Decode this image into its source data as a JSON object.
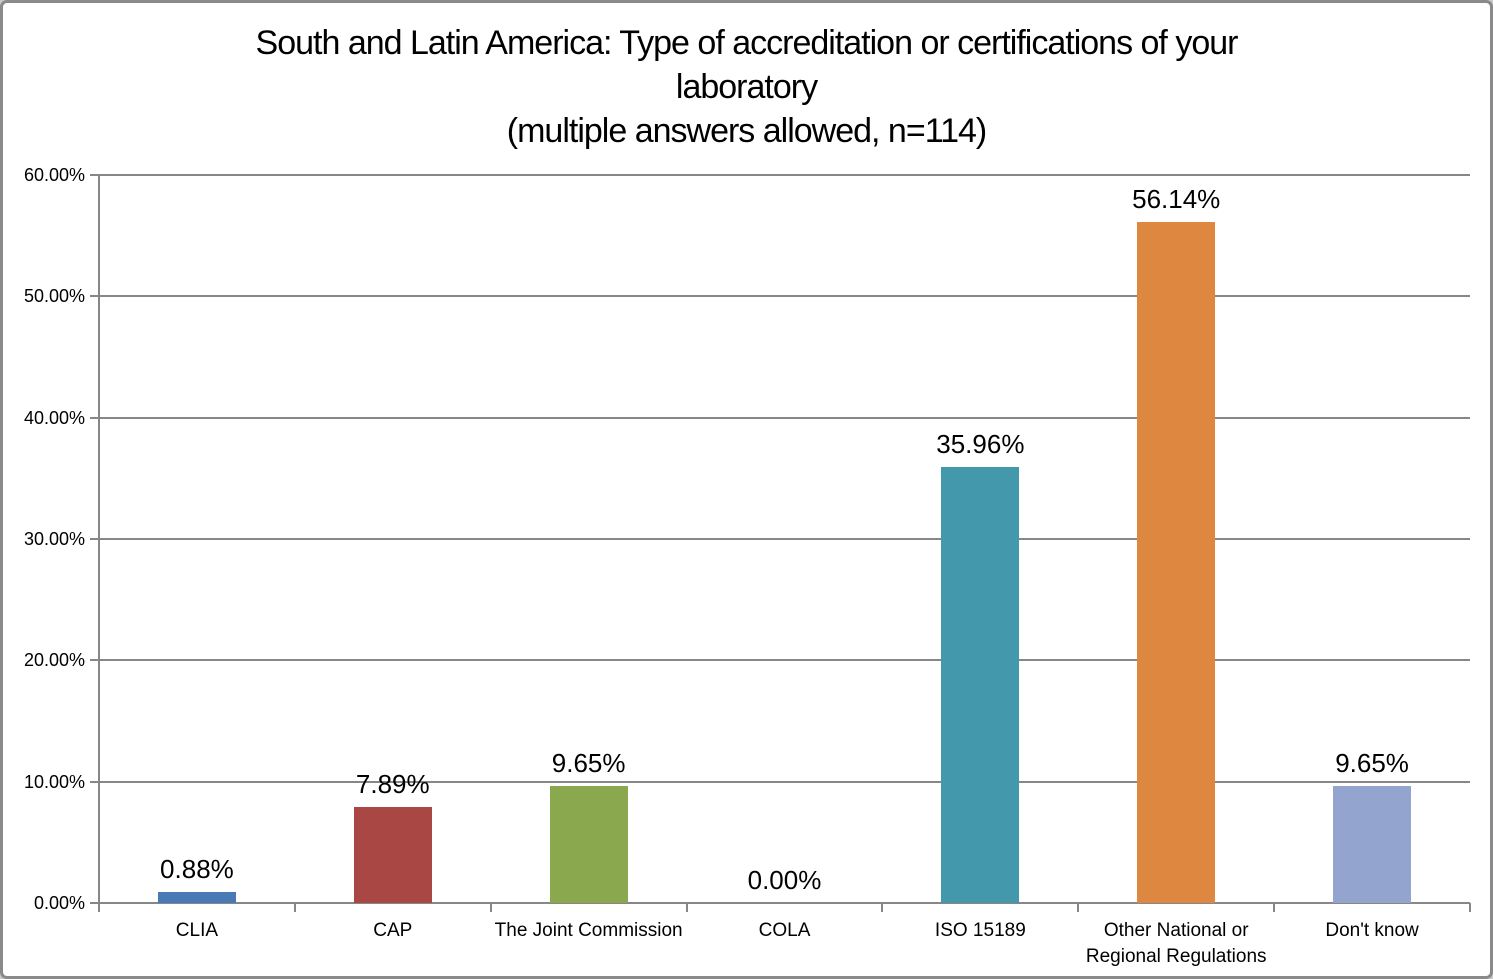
{
  "frame": {
    "background": "#ffffff",
    "border_color": "#8a8a8a"
  },
  "title": {
    "line1": "South and Latin America: Type of accreditation or certifications of your",
    "line2": "laboratory",
    "line3": "(multiple answers allowed, n=114)"
  },
  "chart_data": {
    "type": "bar",
    "title": "South and Latin America: Type of accreditation or certifications of your laboratory",
    "subtitle": "(multiple answers allowed, n=114)",
    "categories": [
      "CLIA",
      "CAP",
      "The Joint Commission",
      "COLA",
      "ISO 15189",
      "Other National or Regional Regulations",
      "Don't know"
    ],
    "values": [
      0.88,
      7.89,
      9.65,
      0.0,
      35.96,
      56.14,
      9.65
    ],
    "data_labels": [
      "0.88%",
      "7.89%",
      "9.65%",
      "0.00%",
      "35.96%",
      "56.14%",
      "9.65%"
    ],
    "bar_colors": [
      "#4A7AB5",
      "#A84743",
      "#8AA84D",
      null,
      "#4498AC",
      "#DD8740",
      "#93A5CE"
    ],
    "xlabel": "",
    "ylabel": "",
    "ylim": [
      0,
      60
    ],
    "ytick_step": 10,
    "ytick_labels": [
      "0.00%",
      "10.00%",
      "20.00%",
      "30.00%",
      "40.00%",
      "50.00%",
      "60.00%"
    ],
    "grid": true,
    "legend": "none",
    "axis_color": "#878787",
    "gridline_color": "#878787",
    "label_color": "#000000"
  }
}
